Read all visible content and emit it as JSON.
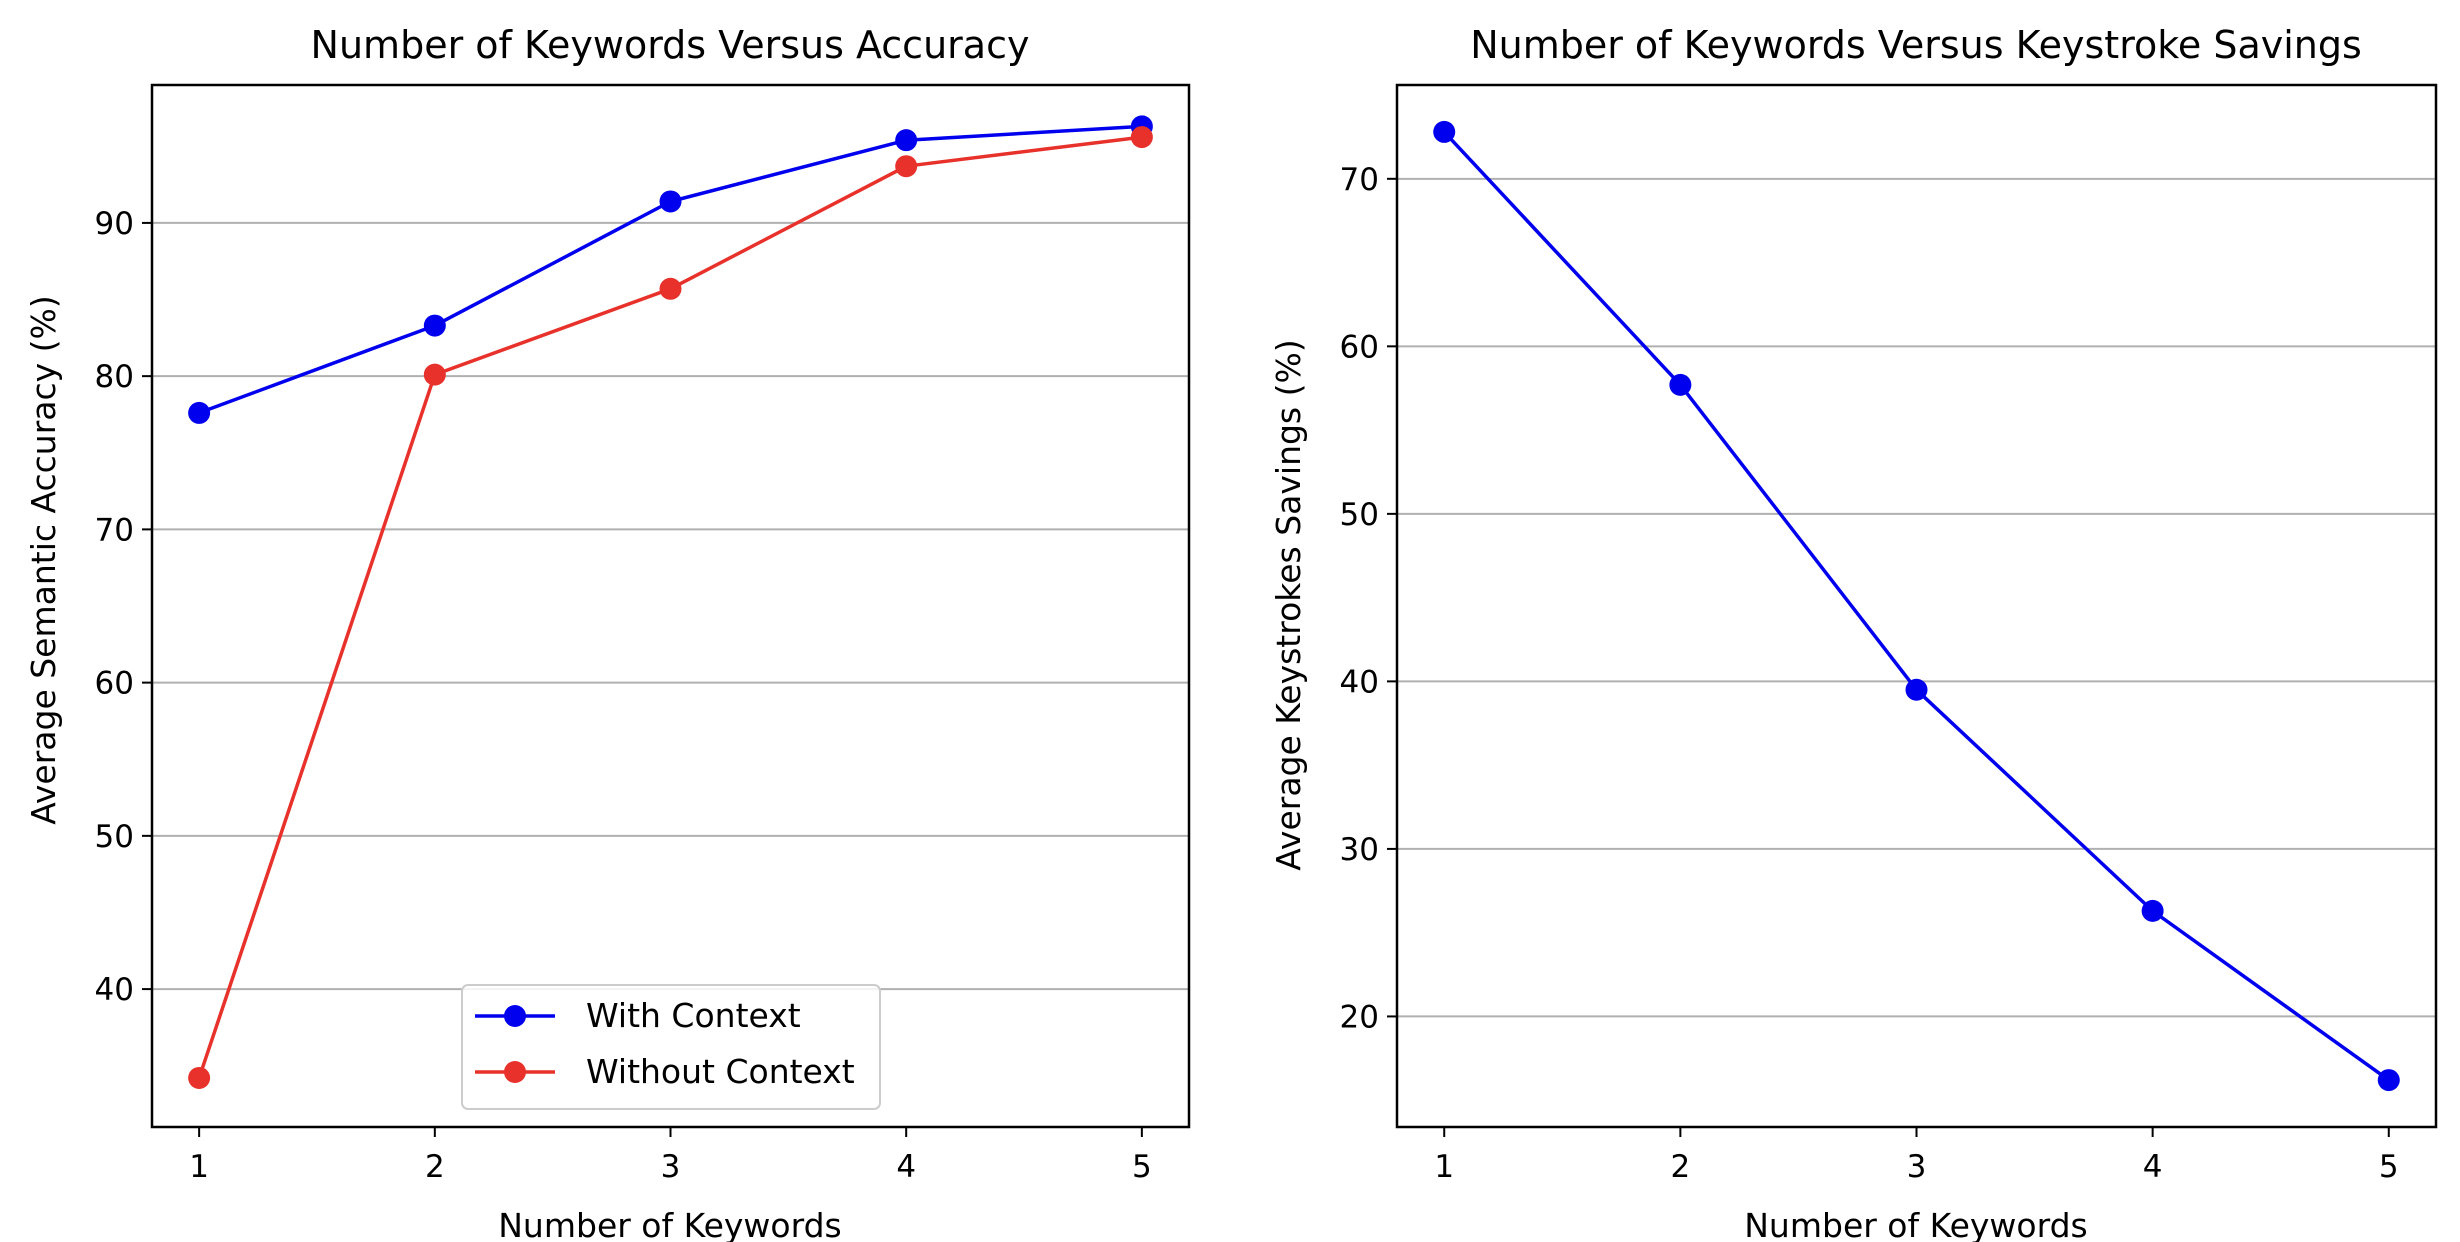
{
  "chart_data": [
    {
      "type": "line",
      "title": "Number of Keywords Versus Accuracy",
      "xlabel": "Number of Keywords",
      "ylabel": "Average Semantic Accuracy (%)",
      "x": [
        1,
        2,
        3,
        4,
        5
      ],
      "xticks": [
        "1",
        "2",
        "3",
        "4",
        "5"
      ],
      "xlim": [
        0.8,
        5.2
      ],
      "ylim": [
        31,
        99
      ],
      "yticks": [
        "40",
        "50",
        "60",
        "70",
        "80",
        "90"
      ],
      "ytick_values": [
        40,
        50,
        60,
        70,
        80,
        90
      ],
      "grid": "y",
      "legend": "lower-center",
      "series": [
        {
          "name": "With Context",
          "values": [
            77.6,
            83.3,
            91.4,
            95.4,
            96.3
          ],
          "color": "#0000ee"
        },
        {
          "name": "Without Context",
          "values": [
            34.2,
            80.1,
            85.7,
            93.7,
            95.6
          ],
          "color": "#e8312a"
        }
      ]
    },
    {
      "type": "line",
      "title": "Number of Keywords Versus Keystroke Savings",
      "xlabel": "Number of Keywords",
      "ylabel": "Average Keystrokes Savings (%)",
      "x": [
        1,
        2,
        3,
        4,
        5
      ],
      "xticks": [
        "1",
        "2",
        "3",
        "4",
        "5"
      ],
      "xlim": [
        0.8,
        5.2
      ],
      "ylim": [
        13.4,
        75.6
      ],
      "yticks": [
        "20",
        "30",
        "40",
        "50",
        "60",
        "70"
      ],
      "ytick_values": [
        20,
        30,
        40,
        50,
        60,
        70
      ],
      "grid": "y",
      "series": [
        {
          "values": [
            72.8,
            57.7,
            39.5,
            26.3,
            16.2
          ],
          "color": "#0000ee"
        }
      ]
    }
  ]
}
